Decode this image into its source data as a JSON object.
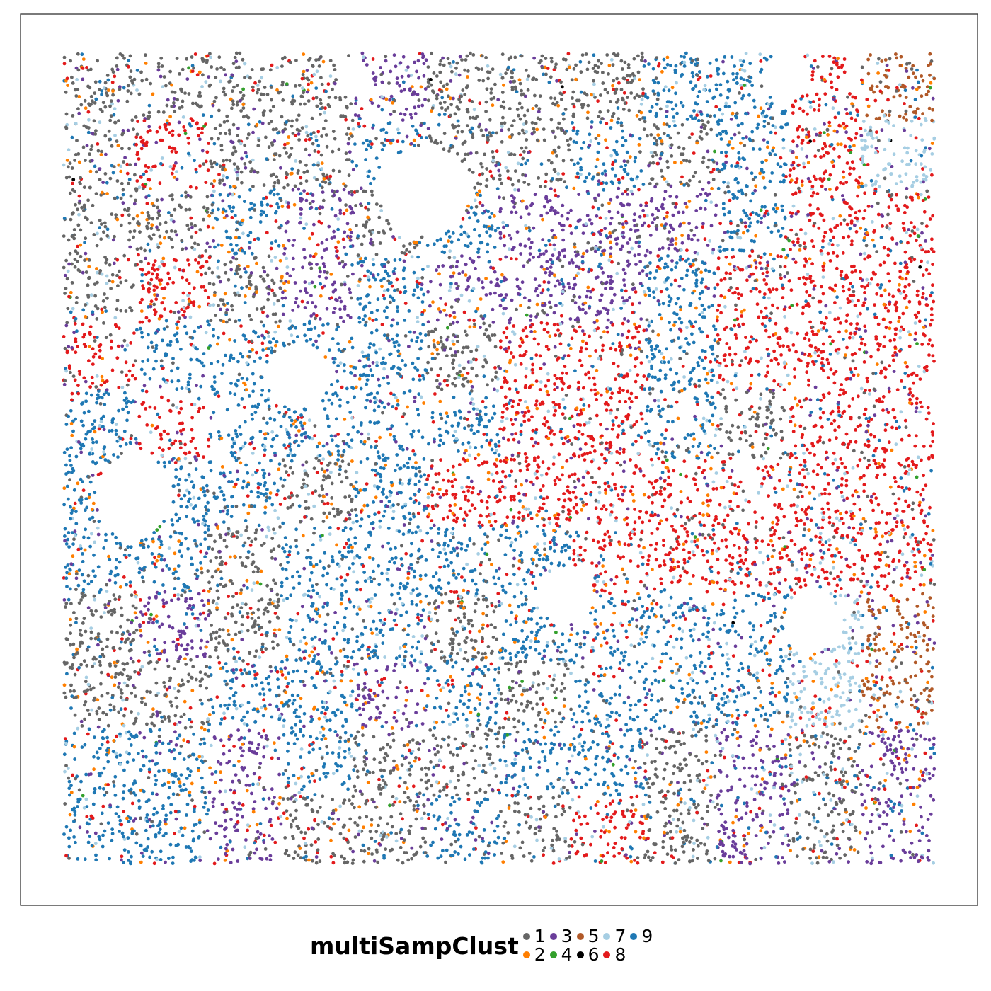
{
  "chart_data": {
    "type": "scatter",
    "title": "",
    "xlabel": "",
    "ylabel": "",
    "axes_visible": false,
    "grid": false,
    "frame": true,
    "legend": {
      "title": "multiSampClust",
      "placement": "bottom",
      "entries": [
        {
          "label": "1",
          "color": "#666666"
        },
        {
          "label": "2",
          "color": "#FF7F00"
        },
        {
          "label": "3",
          "color": "#6A3D9A"
        },
        {
          "label": "4",
          "color": "#33A02C"
        },
        {
          "label": "5",
          "color": "#B15928"
        },
        {
          "label": "6",
          "color": "#000000"
        },
        {
          "label": "7",
          "color": "#A6CEE3"
        },
        {
          "label": "8",
          "color": "#E31A1C"
        },
        {
          "label": "9",
          "color": "#1F78B4"
        }
      ]
    }
  }
}
